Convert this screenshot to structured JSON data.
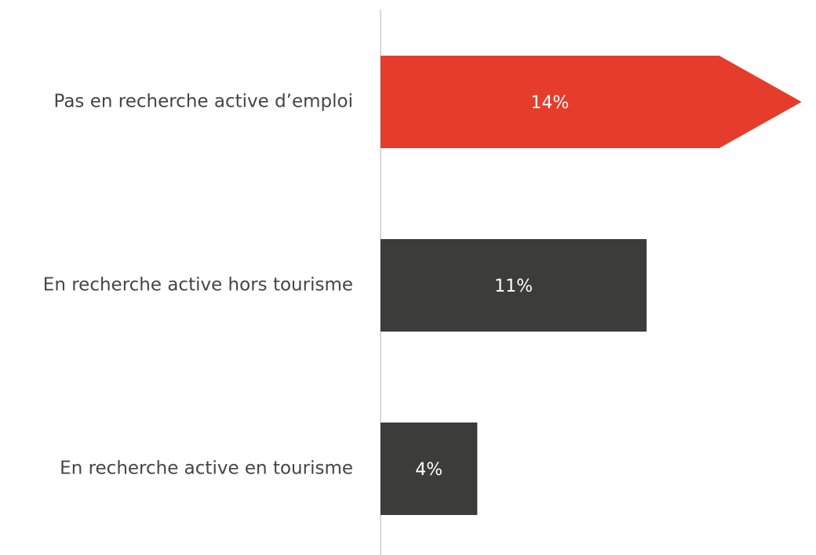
{
  "chart_data": {
    "type": "hbar",
    "categories": [
      "Pas en recherche active d’emploi",
      "En recherche active hors tourisme",
      "En recherche active en tourisme"
    ],
    "values": [
      14,
      11,
      4
    ],
    "value_labels": [
      "14%",
      "11%",
      "4%"
    ],
    "colors": [
      "#e63c2c",
      "#3c3c3b",
      "#3c3c3b"
    ],
    "xlim": [
      0,
      18
    ]
  }
}
